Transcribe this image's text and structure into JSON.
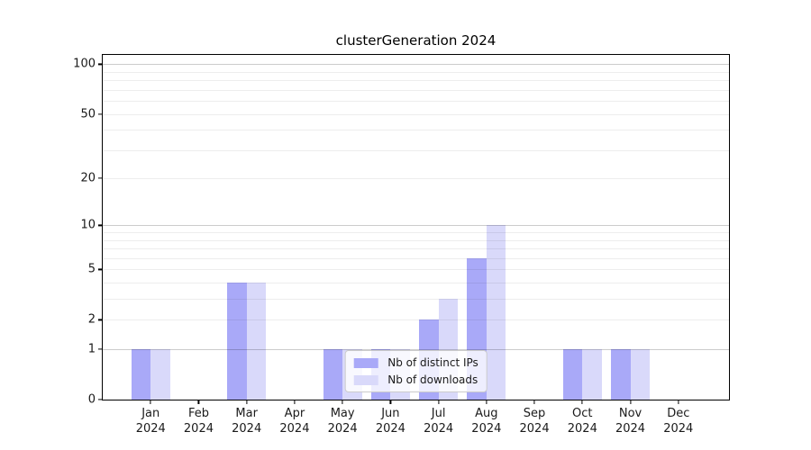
{
  "chart_data": {
    "type": "bar",
    "title": "clusterGeneration 2024",
    "categories": [
      "Jan 2024",
      "Feb 2024",
      "Mar 2024",
      "Apr 2024",
      "May 2024",
      "Jun 2024",
      "Jul 2024",
      "Aug 2024",
      "Sep 2024",
      "Oct 2024",
      "Nov 2024",
      "Dec 2024"
    ],
    "series": [
      {
        "name": "Nb of distinct IPs",
        "color": "#a9a9f8",
        "values": [
          1,
          0,
          4,
          0,
          1,
          1,
          2,
          6,
          0,
          1,
          1,
          0
        ]
      },
      {
        "name": "Nb of downloads",
        "color": "#d9d9fa",
        "values": [
          1,
          0,
          4,
          0,
          1,
          1,
          3,
          10,
          0,
          1,
          1,
          0
        ]
      }
    ],
    "xlabel": "",
    "ylabel": "",
    "yscale": "log1p",
    "ylim": [
      0,
      114
    ],
    "yticks_labeled": [
      0,
      1,
      2,
      5,
      10,
      20,
      50,
      100
    ],
    "gridlines_major": [
      1,
      10,
      100
    ],
    "gridlines_minor": [
      2,
      3,
      4,
      5,
      6,
      7,
      8,
      9,
      20,
      30,
      40,
      50,
      60,
      70,
      80,
      90
    ],
    "grid": "on",
    "legend_position": "lower center",
    "colors": {
      "bar_distinct_ips": "#a9a9f8",
      "bar_downloads": "#d9d9fa",
      "major_gridline": "#cccccc",
      "minor_gridline": "#ececec",
      "axis": "#000000",
      "tick_text": "#1a1a1a",
      "legend_border": "#cccccc"
    }
  }
}
